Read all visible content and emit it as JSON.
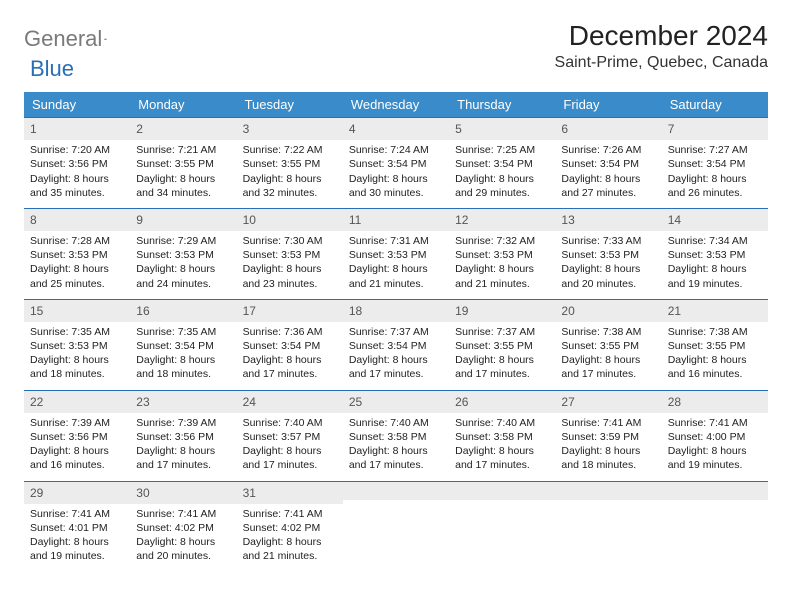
{
  "logo": {
    "part1": "General",
    "part2": "Blue"
  },
  "title": "December 2024",
  "location": "Saint-Prime, Quebec, Canada",
  "colors": {
    "header_bg": "#3a8bc9",
    "header_text": "#ffffff",
    "daynum_bg": "#ececec",
    "daynum_border": "#2a6fb5",
    "logo_gray": "#7a7a7a",
    "logo_blue": "#2a6fb5",
    "body_text": "#222222",
    "page_bg": "#ffffff"
  },
  "typography": {
    "title_fontsize": 28,
    "location_fontsize": 16,
    "dayhead_fontsize": 13,
    "daynum_fontsize": 12,
    "cell_fontsize": 10.5
  },
  "day_headers": [
    "Sunday",
    "Monday",
    "Tuesday",
    "Wednesday",
    "Thursday",
    "Friday",
    "Saturday"
  ],
  "weeks": [
    [
      {
        "n": "1",
        "sr": "7:20 AM",
        "ss": "3:56 PM",
        "dl": "8 hours and 35 minutes."
      },
      {
        "n": "2",
        "sr": "7:21 AM",
        "ss": "3:55 PM",
        "dl": "8 hours and 34 minutes."
      },
      {
        "n": "3",
        "sr": "7:22 AM",
        "ss": "3:55 PM",
        "dl": "8 hours and 32 minutes."
      },
      {
        "n": "4",
        "sr": "7:24 AM",
        "ss": "3:54 PM",
        "dl": "8 hours and 30 minutes."
      },
      {
        "n": "5",
        "sr": "7:25 AM",
        "ss": "3:54 PM",
        "dl": "8 hours and 29 minutes."
      },
      {
        "n": "6",
        "sr": "7:26 AM",
        "ss": "3:54 PM",
        "dl": "8 hours and 27 minutes."
      },
      {
        "n": "7",
        "sr": "7:27 AM",
        "ss": "3:54 PM",
        "dl": "8 hours and 26 minutes."
      }
    ],
    [
      {
        "n": "8",
        "sr": "7:28 AM",
        "ss": "3:53 PM",
        "dl": "8 hours and 25 minutes."
      },
      {
        "n": "9",
        "sr": "7:29 AM",
        "ss": "3:53 PM",
        "dl": "8 hours and 24 minutes."
      },
      {
        "n": "10",
        "sr": "7:30 AM",
        "ss": "3:53 PM",
        "dl": "8 hours and 23 minutes."
      },
      {
        "n": "11",
        "sr": "7:31 AM",
        "ss": "3:53 PM",
        "dl": "8 hours and 21 minutes."
      },
      {
        "n": "12",
        "sr": "7:32 AM",
        "ss": "3:53 PM",
        "dl": "8 hours and 21 minutes."
      },
      {
        "n": "13",
        "sr": "7:33 AM",
        "ss": "3:53 PM",
        "dl": "8 hours and 20 minutes."
      },
      {
        "n": "14",
        "sr": "7:34 AM",
        "ss": "3:53 PM",
        "dl": "8 hours and 19 minutes."
      }
    ],
    [
      {
        "n": "15",
        "sr": "7:35 AM",
        "ss": "3:53 PM",
        "dl": "8 hours and 18 minutes."
      },
      {
        "n": "16",
        "sr": "7:35 AM",
        "ss": "3:54 PM",
        "dl": "8 hours and 18 minutes."
      },
      {
        "n": "17",
        "sr": "7:36 AM",
        "ss": "3:54 PM",
        "dl": "8 hours and 17 minutes."
      },
      {
        "n": "18",
        "sr": "7:37 AM",
        "ss": "3:54 PM",
        "dl": "8 hours and 17 minutes."
      },
      {
        "n": "19",
        "sr": "7:37 AM",
        "ss": "3:55 PM",
        "dl": "8 hours and 17 minutes."
      },
      {
        "n": "20",
        "sr": "7:38 AM",
        "ss": "3:55 PM",
        "dl": "8 hours and 17 minutes."
      },
      {
        "n": "21",
        "sr": "7:38 AM",
        "ss": "3:55 PM",
        "dl": "8 hours and 16 minutes."
      }
    ],
    [
      {
        "n": "22",
        "sr": "7:39 AM",
        "ss": "3:56 PM",
        "dl": "8 hours and 16 minutes."
      },
      {
        "n": "23",
        "sr": "7:39 AM",
        "ss": "3:56 PM",
        "dl": "8 hours and 17 minutes."
      },
      {
        "n": "24",
        "sr": "7:40 AM",
        "ss": "3:57 PM",
        "dl": "8 hours and 17 minutes."
      },
      {
        "n": "25",
        "sr": "7:40 AM",
        "ss": "3:58 PM",
        "dl": "8 hours and 17 minutes."
      },
      {
        "n": "26",
        "sr": "7:40 AM",
        "ss": "3:58 PM",
        "dl": "8 hours and 17 minutes."
      },
      {
        "n": "27",
        "sr": "7:41 AM",
        "ss": "3:59 PM",
        "dl": "8 hours and 18 minutes."
      },
      {
        "n": "28",
        "sr": "7:41 AM",
        "ss": "4:00 PM",
        "dl": "8 hours and 19 minutes."
      }
    ],
    [
      {
        "n": "29",
        "sr": "7:41 AM",
        "ss": "4:01 PM",
        "dl": "8 hours and 19 minutes."
      },
      {
        "n": "30",
        "sr": "7:41 AM",
        "ss": "4:02 PM",
        "dl": "8 hours and 20 minutes."
      },
      {
        "n": "31",
        "sr": "7:41 AM",
        "ss": "4:02 PM",
        "dl": "8 hours and 21 minutes."
      },
      null,
      null,
      null,
      null
    ]
  ],
  "labels": {
    "sunrise": "Sunrise: ",
    "sunset": "Sunset: ",
    "daylight": "Daylight: "
  }
}
